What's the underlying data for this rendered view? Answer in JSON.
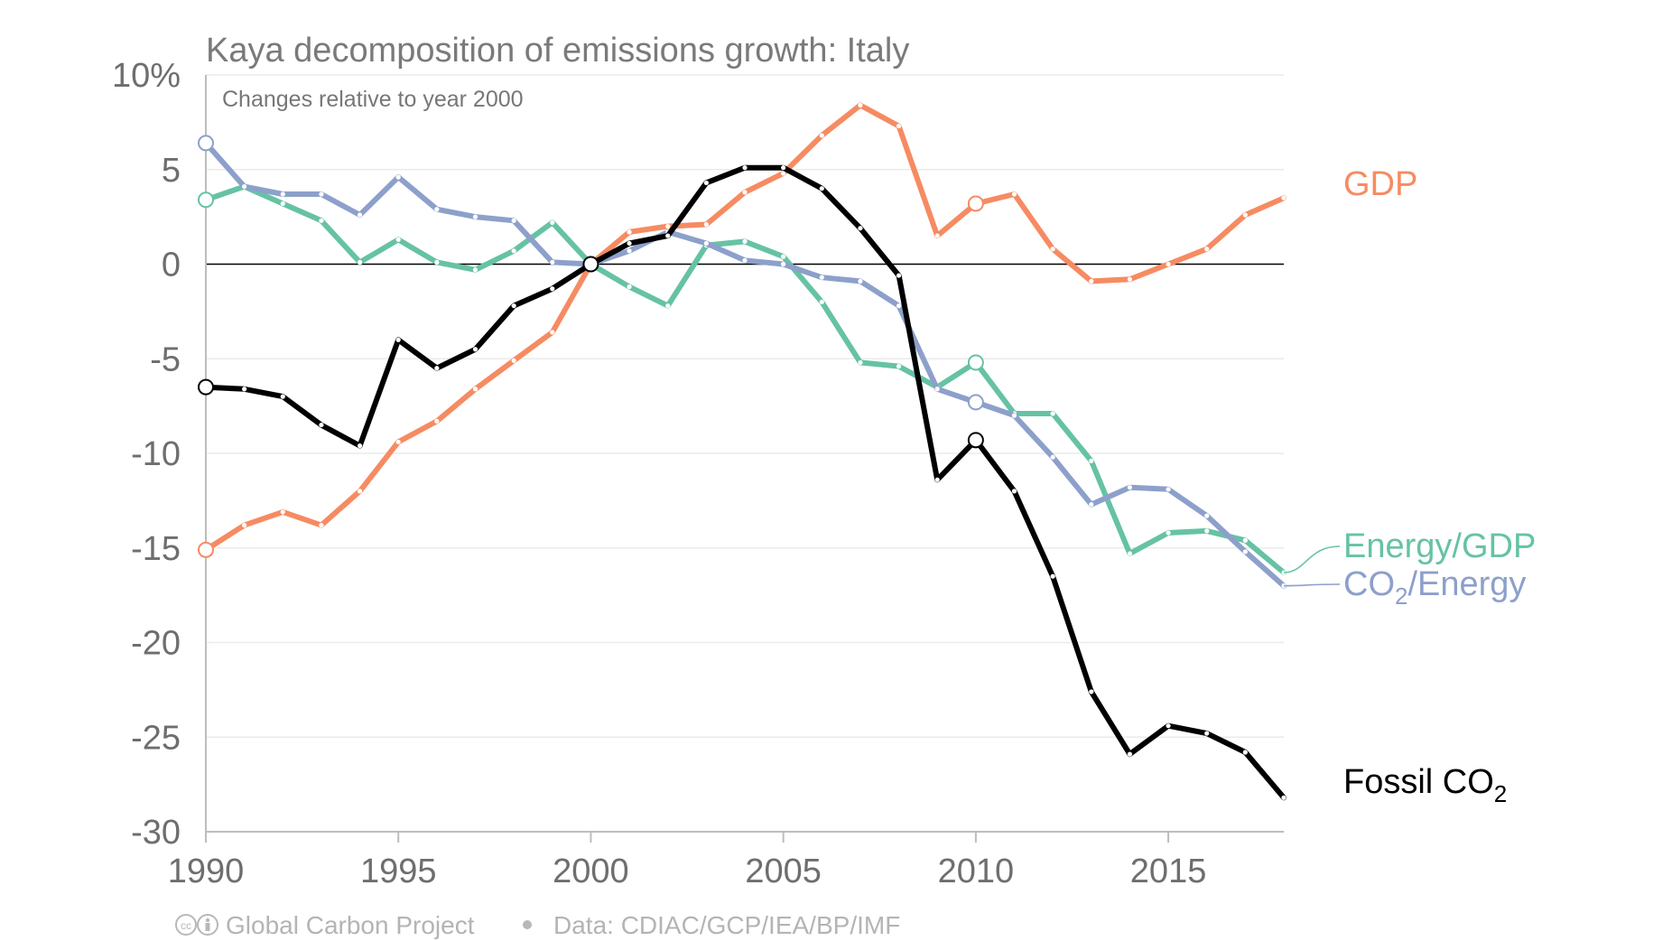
{
  "chart_data": {
    "type": "line",
    "title": "Kaya decomposition of emissions growth: Italy",
    "subtitle": "Changes relative to year 2000",
    "xlim": [
      1990,
      2018
    ],
    "ylim": [
      -30,
      10
    ],
    "x_ticks": [
      "1990",
      "1995",
      "2000",
      "2005",
      "2010",
      "2015"
    ],
    "y_ticks": [
      {
        "value": 10,
        "label": "10%"
      },
      {
        "value": 5,
        "label": "5"
      },
      {
        "value": 0,
        "label": "0"
      },
      {
        "value": -5,
        "label": "-5"
      },
      {
        "value": -10,
        "label": "-10"
      },
      {
        "value": -15,
        "label": "-15"
      },
      {
        "value": -20,
        "label": "-20"
      },
      {
        "value": -25,
        "label": "-25"
      },
      {
        "value": -30,
        "label": "-30"
      }
    ],
    "grid": true,
    "x": [
      1990,
      1991,
      1992,
      1993,
      1994,
      1995,
      1996,
      1997,
      1998,
      1999,
      2000,
      2001,
      2002,
      2003,
      2004,
      2005,
      2006,
      2007,
      2008,
      2009,
      2010,
      2011,
      2012,
      2013,
      2014,
      2015,
      2016,
      2017,
      2018
    ],
    "series": [
      {
        "name": "GDP",
        "color": "#f68b62",
        "values": [
          -15.1,
          -13.8,
          -13.1,
          -13.8,
          -12.0,
          -9.4,
          -8.3,
          -6.6,
          -5.1,
          -3.6,
          0.0,
          1.7,
          2.0,
          2.1,
          3.8,
          4.8,
          6.8,
          8.4,
          7.3,
          1.5,
          3.2,
          3.7,
          0.8,
          -0.9,
          -0.8,
          0.0,
          0.8,
          2.6,
          3.5
        ],
        "highlight_x": [
          1990,
          2010
        ]
      },
      {
        "name": "Energy/GDP",
        "color": "#66c2a5",
        "values": [
          3.4,
          4.1,
          3.2,
          2.3,
          0.1,
          1.3,
          0.1,
          -0.3,
          0.7,
          2.2,
          0.0,
          -1.2,
          -2.2,
          1.0,
          1.2,
          0.4,
          -2.0,
          -5.2,
          -5.4,
          -6.5,
          -5.2,
          -7.9,
          -7.9,
          -10.4,
          -15.3,
          -14.2,
          -14.1,
          -14.6,
          -16.3
        ],
        "highlight_x": [
          1990,
          2010
        ]
      },
      {
        "name": "CO₂/Energy",
        "name_parts": [
          "CO",
          "2",
          "/Energy"
        ],
        "color": "#8da0cb",
        "values": [
          6.4,
          4.1,
          3.7,
          3.7,
          2.6,
          4.6,
          2.9,
          2.5,
          2.3,
          0.1,
          0.0,
          0.7,
          1.7,
          1.1,
          0.2,
          0.0,
          -0.7,
          -0.9,
          -2.2,
          -6.6,
          -7.3,
          -8.0,
          -10.2,
          -12.7,
          -11.8,
          -11.9,
          -13.3,
          -15.2,
          -17.0
        ],
        "highlight_x": [
          1990,
          2010
        ]
      },
      {
        "name": "Fossil CO₂",
        "name_parts": [
          "Fossil CO",
          "2",
          ""
        ],
        "color": "#000000",
        "values": [
          -6.5,
          -6.6,
          -7.0,
          -8.5,
          -9.6,
          -4.0,
          -5.5,
          -4.5,
          -2.2,
          -1.3,
          0.0,
          1.1,
          1.5,
          4.3,
          5.1,
          5.1,
          4.0,
          1.9,
          -0.6,
          -11.4,
          -9.3,
          -12.0,
          -16.5,
          -22.6,
          -25.9,
          -24.4,
          -24.8,
          -25.8,
          -28.2
        ],
        "highlight_x": [
          1990,
          2000,
          2010
        ]
      }
    ],
    "footer": {
      "cc_icon": "cc-by-icon",
      "source_label": "Global Carbon Project",
      "separator_icon": "bullet-icon",
      "data_label": "Data: CDIAC/GCP/IEA/BP/IMF"
    }
  }
}
